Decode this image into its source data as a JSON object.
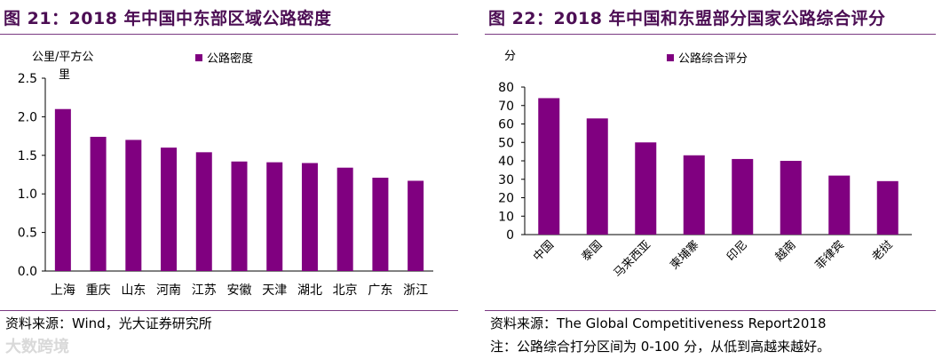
{
  "chart_data": [
    {
      "type": "bar",
      "title": "图 21：2018 年中国中东部区域公路密度",
      "ylabel_line1": "公里/平方公",
      "ylabel_line2": "里",
      "legend": "公路密度",
      "series_color": "#800080",
      "categories": [
        "上海",
        "重庆",
        "山东",
        "河南",
        "江苏",
        "安徽",
        "天津",
        "湖北",
        "北京",
        "广东",
        "浙江"
      ],
      "values": [
        2.1,
        1.74,
        1.7,
        1.6,
        1.54,
        1.42,
        1.41,
        1.4,
        1.34,
        1.21,
        1.17
      ],
      "ylim": [
        0,
        2.5
      ],
      "yticks": [
        "0.0",
        "0.5",
        "1.0",
        "1.5",
        "2.0",
        "2.5"
      ],
      "source": "资料来源：Wind，光大证券研究所"
    },
    {
      "type": "bar",
      "title": "图 22：2018 年中国和东盟部分国家公路综合评分",
      "ylabel": "分",
      "legend": "公路综合评分",
      "series_color": "#800080",
      "categories": [
        "中国",
        "泰国",
        "马来西亚",
        "柬埔寨",
        "印尼",
        "越南",
        "菲律宾",
        "老挝"
      ],
      "values": [
        74,
        63,
        50,
        43,
        41,
        40,
        32,
        29
      ],
      "ylim": [
        0,
        80
      ],
      "yticks": [
        "0",
        "10",
        "20",
        "30",
        "40",
        "50",
        "60",
        "70",
        "80"
      ],
      "source": "资料来源：The Global Competitiveness Report2018",
      "note": "注：公路综合打分区间为 0-100 分，从低到高越来越好。"
    }
  ],
  "watermark": "大数跨境"
}
